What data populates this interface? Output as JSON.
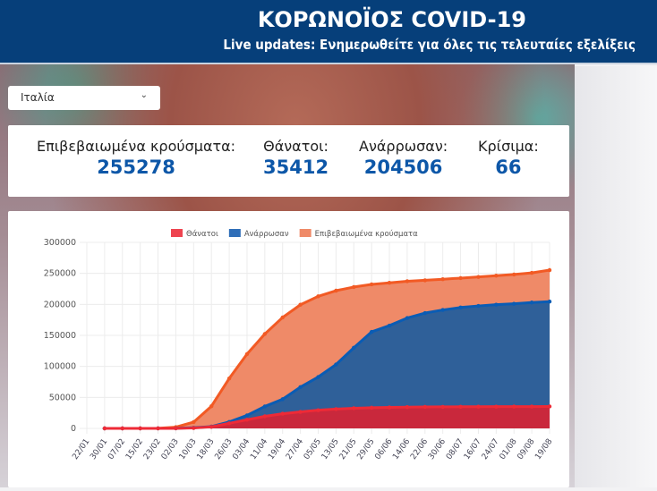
{
  "header": {
    "title": "ΚΟΡΩΝΟΪΟΣ COVID-19",
    "subtitle": "Live updates: Ενημερωθείτε για όλες τις τελευταίες εξελίξεις"
  },
  "country_select": {
    "value": "Ιταλία",
    "icon": "chevron-down-icon"
  },
  "stats": [
    {
      "label": "Επιβεβαιωμένα κρούσματα:",
      "value": "255278"
    },
    {
      "label": "Θάνατοι:",
      "value": "35412"
    },
    {
      "label": "Ανάρρωσαν:",
      "value": "204506"
    },
    {
      "label": "Κρίσιμα:",
      "value": "66"
    }
  ],
  "chart_data": {
    "type": "area",
    "legend_position": "top",
    "grid": true,
    "ylim": [
      0,
      300000
    ],
    "yticks": [
      0,
      50000,
      100000,
      150000,
      200000,
      250000,
      300000
    ],
    "x": [
      "22/01",
      "30/01",
      "07/02",
      "15/02",
      "23/02",
      "02/03",
      "10/03",
      "18/03",
      "26/03",
      "03/04",
      "11/04",
      "19/04",
      "27/04",
      "05/05",
      "13/05",
      "21/05",
      "29/05",
      "06/06",
      "14/06",
      "22/06",
      "30/06",
      "08/07",
      "16/07",
      "24/07",
      "01/08",
      "09/08",
      "19/08"
    ],
    "series": [
      {
        "name": "Θάνατοι",
        "line_color": "#ee2a36",
        "fill_color": "#c9283c",
        "values": [
          null,
          0,
          0,
          0,
          7,
          52,
          631,
          2503,
          8165,
          13915,
          19468,
          23660,
          26644,
          29315,
          31106,
          32486,
          33340,
          33846,
          34345,
          34657,
          34767,
          34899,
          35028,
          35107,
          35154,
          35209,
          35412
        ]
      },
      {
        "name": "Ανάρρωσαν",
        "line_color": "#0a5cb4",
        "fill_color": "#2f6099",
        "values": [
          null,
          0,
          0,
          0,
          1,
          160,
          1004,
          2941,
          10361,
          20996,
          35435,
          47055,
          66624,
          82879,
          103031,
          130000,
          155633,
          165837,
          178000,
          186000,
          191000,
          195000,
          197500,
          199500,
          201000,
          203000,
          204506
        ]
      },
      {
        "name": "Επιβεβαιωμένα κρούσματα",
        "line_color": "#f25a24",
        "fill_color": "#ef8a68",
        "values": [
          null,
          2,
          3,
          3,
          155,
          2036,
          10149,
          35713,
          80539,
          119827,
          152271,
          178972,
          199414,
          213013,
          222104,
          228006,
          232248,
          234801,
          237290,
          238833,
          240578,
          242363,
          244216,
          246286,
          248229,
          250825,
          255278
        ]
      }
    ]
  }
}
